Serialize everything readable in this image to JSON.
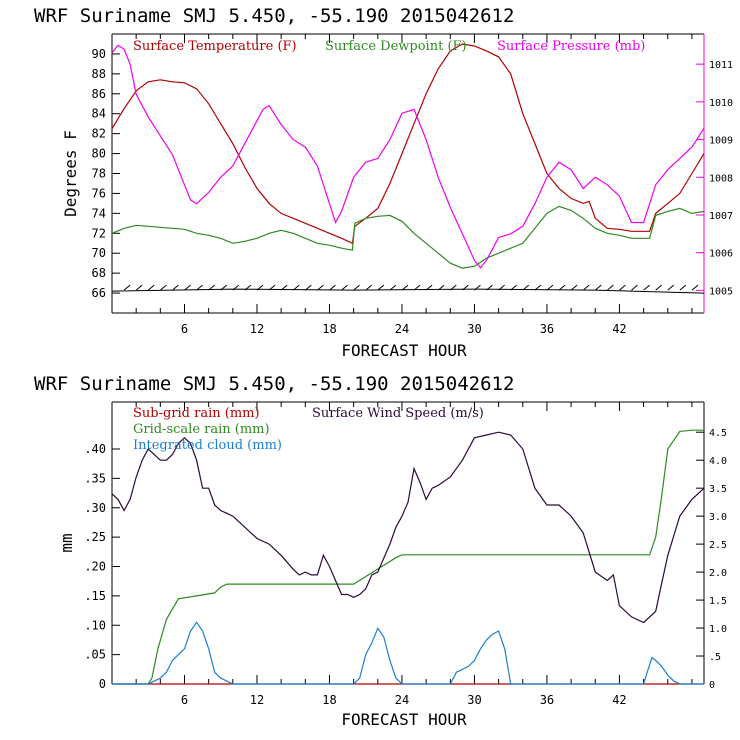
{
  "chart_data": [
    {
      "type": "line",
      "title": "WRF   Suriname SMJ   5.450, -55.190  2015042612",
      "xlabel": "FORECAST HOUR",
      "ylabel": "Degrees F",
      "xlim": [
        0,
        49
      ],
      "ylim": [
        64,
        92
      ],
      "y2lim": [
        1004.4,
        1011.8
      ],
      "x_ticks": [
        6,
        12,
        18,
        24,
        30,
        36,
        42
      ],
      "y_ticks": [
        66,
        68,
        70,
        72,
        74,
        76,
        78,
        80,
        82,
        84,
        86,
        88,
        90
      ],
      "y2_ticks": [
        1005,
        1006,
        1007,
        1008,
        1009,
        1010,
        1011
      ],
      "legend_placement": "top-inside",
      "series": [
        {
          "name": "Surface Temperature (F)",
          "color": "#b00000",
          "axis": "left",
          "x": [
            0,
            1,
            2,
            3,
            4,
            5,
            6,
            7,
            8,
            9,
            10,
            11,
            12,
            13,
            14,
            15,
            16,
            17,
            18,
            19,
            19.9,
            20.1,
            21,
            22,
            23,
            24,
            25,
            26,
            27,
            28,
            29,
            30,
            31,
            32,
            33,
            34,
            35,
            36,
            37,
            38,
            39,
            39.5,
            40,
            41,
            42,
            43,
            44,
            44.5,
            45,
            46,
            47,
            48,
            49
          ],
          "y": [
            82.5,
            84.5,
            86.3,
            87.2,
            87.4,
            87.2,
            87.1,
            86.5,
            85,
            83,
            81,
            78.6,
            76.5,
            75,
            74,
            73.5,
            73,
            72.5,
            72,
            71.5,
            71,
            72.7,
            73.5,
            74.5,
            77,
            80,
            83,
            86,
            88.5,
            90.3,
            91,
            90.8,
            90.3,
            89.7,
            88,
            84,
            81,
            78,
            76.5,
            75.5,
            75,
            75.2,
            73.5,
            72.5,
            72.4,
            72.2,
            72.2,
            72.2,
            74,
            75,
            76,
            78,
            80
          ]
        },
        {
          "name": "Surface Dewpoint (F)",
          "color": "#2e8b22",
          "axis": "left",
          "x": [
            0,
            1,
            2,
            3,
            4,
            5,
            6,
            7,
            8,
            9,
            10,
            11,
            12,
            13,
            14,
            15,
            16,
            17,
            18,
            19,
            19.9,
            20.1,
            21,
            22,
            23,
            24,
            25,
            26,
            27,
            28,
            29,
            30,
            31,
            32,
            33,
            34,
            35,
            36,
            37,
            38,
            39,
            40,
            41,
            42,
            43,
            44,
            44.5,
            45,
            46,
            47,
            48,
            49
          ],
          "y": [
            72,
            72.5,
            72.8,
            72.7,
            72.6,
            72.5,
            72.4,
            72,
            71.8,
            71.5,
            71,
            71.2,
            71.5,
            72,
            72.3,
            72,
            71.5,
            71,
            70.8,
            70.5,
            70.3,
            73,
            73.5,
            73.7,
            73.8,
            73.2,
            72,
            71,
            70,
            69,
            68.5,
            68.7,
            69.5,
            70,
            70.5,
            71,
            72.5,
            74,
            74.7,
            74.3,
            73.5,
            72.5,
            72,
            71.8,
            71.5,
            71.5,
            71.5,
            73.8,
            74.2,
            74.5,
            74,
            74.2
          ]
        },
        {
          "name": "Surface Pressure (mb)",
          "color": "#ee00ee",
          "axis": "right",
          "x": [
            0,
            0.5,
            1,
            1.5,
            2,
            3,
            4,
            5,
            6,
            6.5,
            7,
            8,
            9,
            10,
            11,
            12,
            12.5,
            13,
            14,
            15,
            16,
            17,
            18,
            18.5,
            19,
            20,
            21,
            22,
            23,
            24,
            25,
            26,
            27,
            28,
            29,
            30,
            30.5,
            31,
            32,
            33,
            34,
            35,
            36,
            37,
            38,
            39,
            40,
            41,
            42,
            43,
            44,
            45,
            46,
            47,
            48,
            49
          ],
          "y": [
            1011.3,
            1011.5,
            1011.4,
            1011,
            1010.2,
            1009.6,
            1009.1,
            1008.6,
            1007.8,
            1007.4,
            1007.3,
            1007.6,
            1008,
            1008.3,
            1008.9,
            1009.5,
            1009.8,
            1009.9,
            1009.4,
            1009,
            1008.8,
            1008.3,
            1007.3,
            1006.8,
            1007.1,
            1008,
            1008.4,
            1008.5,
            1009,
            1009.7,
            1009.8,
            1009,
            1008,
            1007.2,
            1006.5,
            1005.8,
            1005.6,
            1005.8,
            1006.4,
            1006.5,
            1006.7,
            1007.3,
            1008,
            1008.4,
            1008.2,
            1007.7,
            1008,
            1007.8,
            1007.5,
            1006.8,
            1006.8,
            1007.8,
            1008.2,
            1008.5,
            1008.8,
            1009.3
          ]
        },
        {
          "name": "Wind barbs",
          "color": "#000000",
          "axis": "left",
          "x": [
            0,
            10,
            20,
            30,
            40,
            49
          ],
          "y": [
            66.2,
            66.4,
            66.3,
            66.4,
            66.3,
            66
          ]
        }
      ]
    },
    {
      "type": "line",
      "title": "WRF   Suriname SMJ   5.450, -55.190  2015042612",
      "xlabel": "FORECAST HOUR",
      "ylabel": "mm",
      "xlim": [
        0,
        49
      ],
      "ylim": [
        0,
        0.48
      ],
      "y2lim": [
        0,
        5.04
      ],
      "x_ticks": [
        6,
        12,
        18,
        24,
        30,
        36,
        42
      ],
      "y_ticks": [
        0,
        0.05,
        0.1,
        0.15,
        0.2,
        0.25,
        0.3,
        0.35,
        0.4
      ],
      "y_tick_labels": [
        "0",
        ".05",
        ".10",
        ".15",
        ".20",
        ".25",
        ".30",
        ".35",
        ".40"
      ],
      "y2_ticks": [
        0,
        0.5,
        1.0,
        1.5,
        2.0,
        2.5,
        3.0,
        3.5,
        4.0,
        4.5
      ],
      "y2_tick_labels": [
        "0",
        ".5",
        "1.0",
        "1.5",
        "2.0",
        "2.5",
        "3.0",
        "3.5",
        "4.0",
        "4.5"
      ],
      "legend_placement": "top-inside",
      "series": [
        {
          "name": "Sub-grid rain (mm)",
          "color": "#b00000",
          "axis": "left",
          "x": [
            0,
            49
          ],
          "y": [
            0,
            0
          ]
        },
        {
          "name": "Grid-scale rain (mm)",
          "color": "#2e8b22",
          "axis": "left",
          "x": [
            0,
            3,
            3.3,
            3.8,
            4.5,
            5.5,
            7,
            8.5,
            9,
            9.5,
            10,
            19,
            19.8,
            20,
            23.5,
            24,
            30,
            40,
            44,
            44.5,
            45,
            45.5,
            46,
            47,
            48,
            49
          ],
          "y": [
            0,
            0,
            0.01,
            0.06,
            0.11,
            0.145,
            0.15,
            0.155,
            0.165,
            0.17,
            0.17,
            0.17,
            0.17,
            0.17,
            0.215,
            0.22,
            0.22,
            0.22,
            0.22,
            0.22,
            0.25,
            0.32,
            0.4,
            0.43,
            0.432,
            0.432
          ]
        },
        {
          "name": "Integrated cloud (mm)",
          "color": "#1a7fd4",
          "axis": "left",
          "x": [
            0,
            3,
            3.5,
            4,
            4.5,
            5,
            5.5,
            6,
            6.5,
            7,
            7.5,
            8,
            8.5,
            9,
            9.5,
            10,
            20,
            20.5,
            21,
            21.5,
            22,
            22.5,
            23,
            23.5,
            24,
            28,
            28.5,
            29,
            29.5,
            30,
            30.5,
            31,
            31.5,
            32,
            32.5,
            33,
            44,
            44.3,
            44.7,
            45,
            45.5,
            46,
            46.5,
            47,
            49
          ],
          "y": [
            0,
            0,
            0.005,
            0.01,
            0.02,
            0.04,
            0.05,
            0.06,
            0.09,
            0.105,
            0.09,
            0.06,
            0.02,
            0.01,
            0.005,
            0,
            0,
            0.01,
            0.05,
            0.07,
            0.095,
            0.08,
            0.04,
            0.01,
            0,
            0,
            0.02,
            0.025,
            0.03,
            0.04,
            0.06,
            0.075,
            0.085,
            0.09,
            0.06,
            0,
            0,
            0.02,
            0.045,
            0.04,
            0.03,
            0.015,
            0.005,
            0,
            0
          ]
        },
        {
          "name": "Surface Wind Speed (m/s)",
          "color": "#2a0a3a",
          "axis": "right",
          "x": [
            0,
            0.5,
            1,
            1.5,
            2,
            2.5,
            3,
            3.5,
            4,
            4.5,
            5,
            5.5,
            6,
            6.5,
            7,
            7.5,
            8,
            8.5,
            9,
            9.5,
            10,
            11,
            12,
            13,
            14,
            15,
            15.5,
            16,
            16.5,
            17,
            17.5,
            18,
            18.5,
            19,
            19.5,
            20,
            20.5,
            21,
            21.5,
            22,
            22.5,
            23,
            23.5,
            24,
            24.5,
            25,
            25.5,
            26,
            26.5,
            27,
            28,
            29,
            30,
            31,
            32,
            33,
            34,
            35,
            36,
            37,
            38,
            39,
            40,
            41,
            41.5,
            42,
            43,
            44,
            45,
            45.5,
            46,
            47,
            48,
            49
          ],
          "y": [
            3.4,
            3.3,
            3.1,
            3.3,
            3.7,
            4.0,
            4.2,
            4.1,
            4.0,
            4.0,
            4.1,
            4.3,
            4.4,
            4.3,
            4.0,
            3.5,
            3.5,
            3.2,
            3.1,
            3.05,
            3.0,
            2.8,
            2.6,
            2.5,
            2.3,
            2.05,
            1.95,
            2.0,
            1.95,
            1.95,
            2.3,
            2.1,
            1.85,
            1.6,
            1.6,
            1.55,
            1.6,
            1.7,
            1.95,
            2.0,
            2.25,
            2.5,
            2.8,
            3.0,
            3.25,
            3.85,
            3.6,
            3.3,
            3.5,
            3.55,
            3.7,
            4.0,
            4.4,
            4.45,
            4.5,
            4.45,
            4.2,
            3.5,
            3.2,
            3.2,
            3.0,
            2.7,
            2.0,
            1.85,
            1.95,
            1.4,
            1.2,
            1.1,
            1.3,
            1.8,
            2.3,
            3.0,
            3.3,
            3.5
          ]
        }
      ]
    }
  ]
}
